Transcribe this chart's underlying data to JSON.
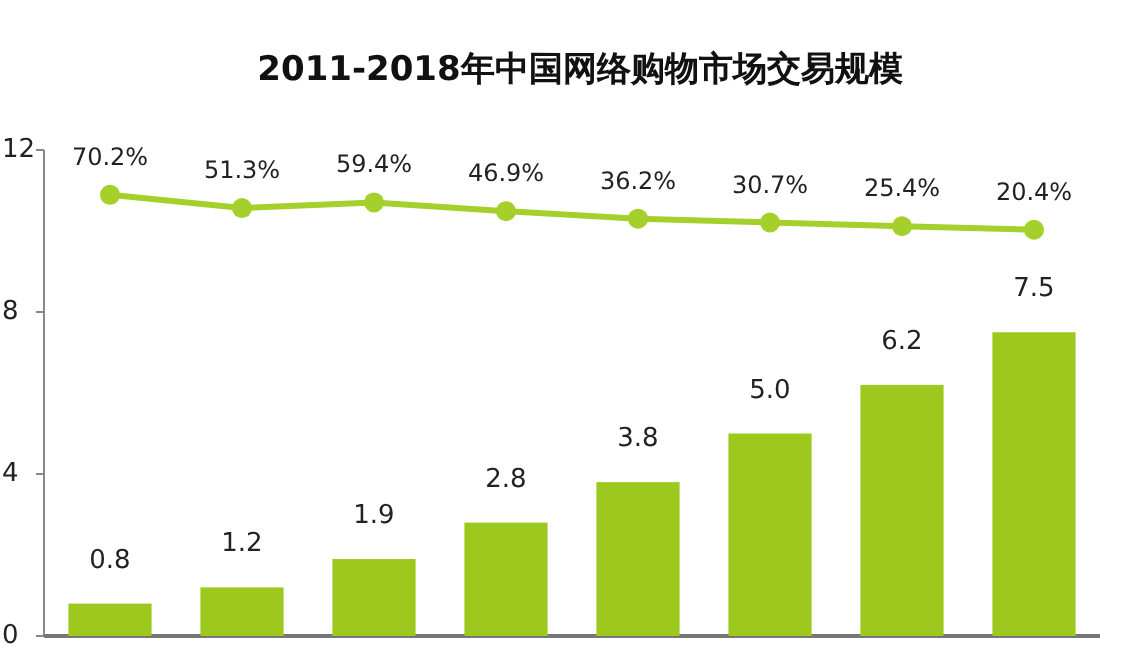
{
  "chart_data": {
    "type": "bar",
    "title": "2011-2018年中国网络购物市场交易规模",
    "categories": [
      null,
      null,
      null,
      null,
      null,
      null,
      null,
      null
    ],
    "ylim": [
      0,
      12
    ],
    "yticks": [
      0,
      4,
      8,
      12
    ],
    "y2lim": [
      -558,
      134
    ],
    "series": [
      {
        "color": "#9dc81e",
        "values": [
          0.8,
          1.2,
          1.9,
          2.8,
          3.8,
          5.0,
          6.2,
          7.5
        ],
        "value_labels": [
          "0.8",
          "1.2",
          "1.9",
          "2.8",
          "3.8",
          "5.0",
          "6.2",
          "7.5"
        ]
      },
      {
        "type": "line",
        "axis": "y2",
        "color": "#a5cf2a",
        "marker": "circle",
        "values": [
          70.2,
          51.3,
          59.4,
          46.9,
          36.2,
          30.7,
          25.4,
          20.4
        ],
        "value_labels": [
          "70.2%",
          "51.3%",
          "59.4%",
          "46.9%",
          "36.2%",
          "30.7%",
          "25.4%",
          "20.4%"
        ]
      }
    ]
  }
}
